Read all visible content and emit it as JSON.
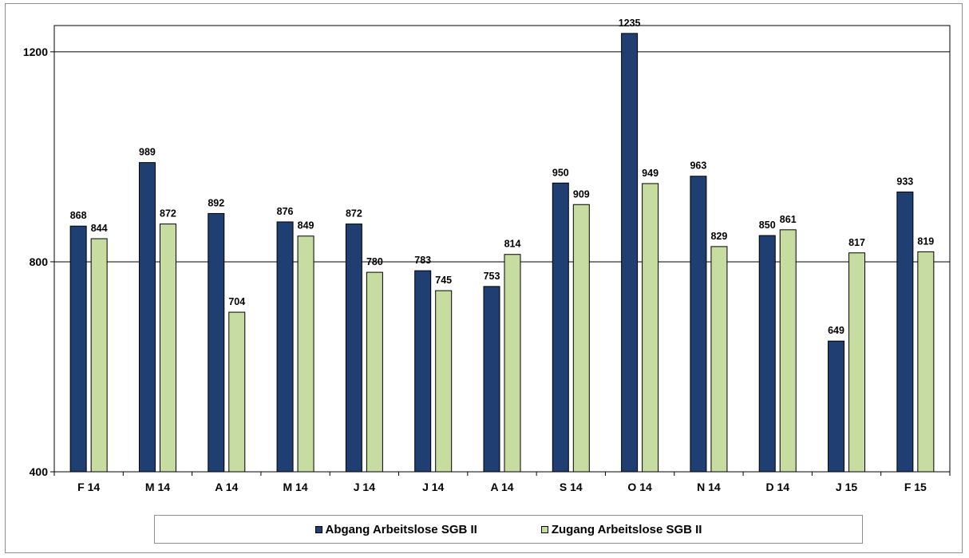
{
  "chart_data": {
    "type": "bar",
    "title": "",
    "xlabel": "",
    "ylabel": "",
    "categories": [
      "F 14",
      "M 14",
      "A 14",
      "M 14",
      "J 14",
      "J 14",
      "A 14",
      "S 14",
      "O 14",
      "N 14",
      "D 14",
      "J 15",
      "F 15"
    ],
    "series": [
      {
        "name": "Abgang Arbeitslose SGB II",
        "color": "#1f3f73",
        "values": [
          868,
          989,
          892,
          876,
          872,
          783,
          753,
          950,
          1235,
          963,
          850,
          649,
          933
        ]
      },
      {
        "name": "Zugang Arbeitslose SGB II",
        "color": "#c6dca0",
        "values": [
          844,
          872,
          704,
          849,
          780,
          745,
          814,
          909,
          949,
          829,
          861,
          817,
          819
        ]
      }
    ],
    "ylim": [
      400,
      1235
    ],
    "yticks": [
      400,
      800,
      1200
    ],
    "grid": true,
    "legend_position": "bottom"
  }
}
